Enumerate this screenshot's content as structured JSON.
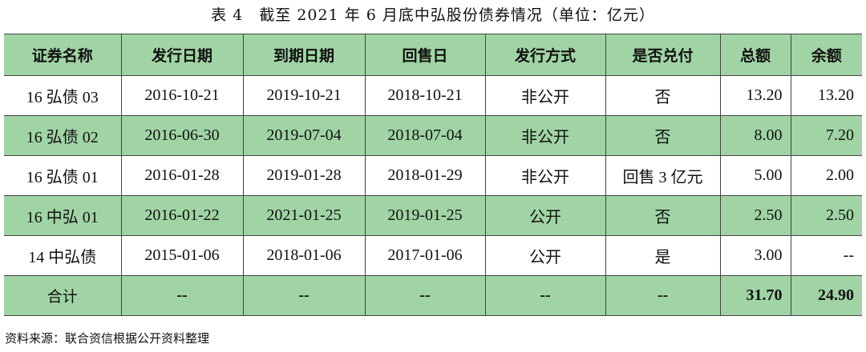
{
  "title": "表 4　截至 2021 年 6 月底中弘股份债券情况（单位：亿元）",
  "table": {
    "headers": [
      "证券名称",
      "发行日期",
      "到期日期",
      "回售日",
      "发行方式",
      "是否兑付",
      "总额",
      "余额"
    ],
    "rows": [
      [
        "16 弘债 03",
        "2016-10-21",
        "2019-10-21",
        "2018-10-21",
        "非公开",
        "否",
        "13.20",
        "13.20"
      ],
      [
        "16 弘债 02",
        "2016-06-30",
        "2019-07-04",
        "2018-07-04",
        "非公开",
        "否",
        "8.00",
        "7.20"
      ],
      [
        "16 弘债 01",
        "2016-01-28",
        "2019-01-28",
        "2018-01-29",
        "非公开",
        "回售 3 亿元",
        "5.00",
        "2.00"
      ],
      [
        "16 中弘 01",
        "2016-01-22",
        "2021-01-25",
        "2019-01-25",
        "公开",
        "否",
        "2.50",
        "2.50"
      ],
      [
        "14 中弘债",
        "2015-01-06",
        "2018-01-06",
        "2017-01-06",
        "公开",
        "是",
        "3.00",
        "--"
      ]
    ],
    "total": [
      "合计",
      "--",
      "--",
      "--",
      "--",
      "--",
      "31.70",
      "24.90"
    ]
  },
  "source": "资料来源：联合资信根据公开资料整理",
  "colors": {
    "header_bg": "#a0d4a4",
    "border": "#444444"
  }
}
